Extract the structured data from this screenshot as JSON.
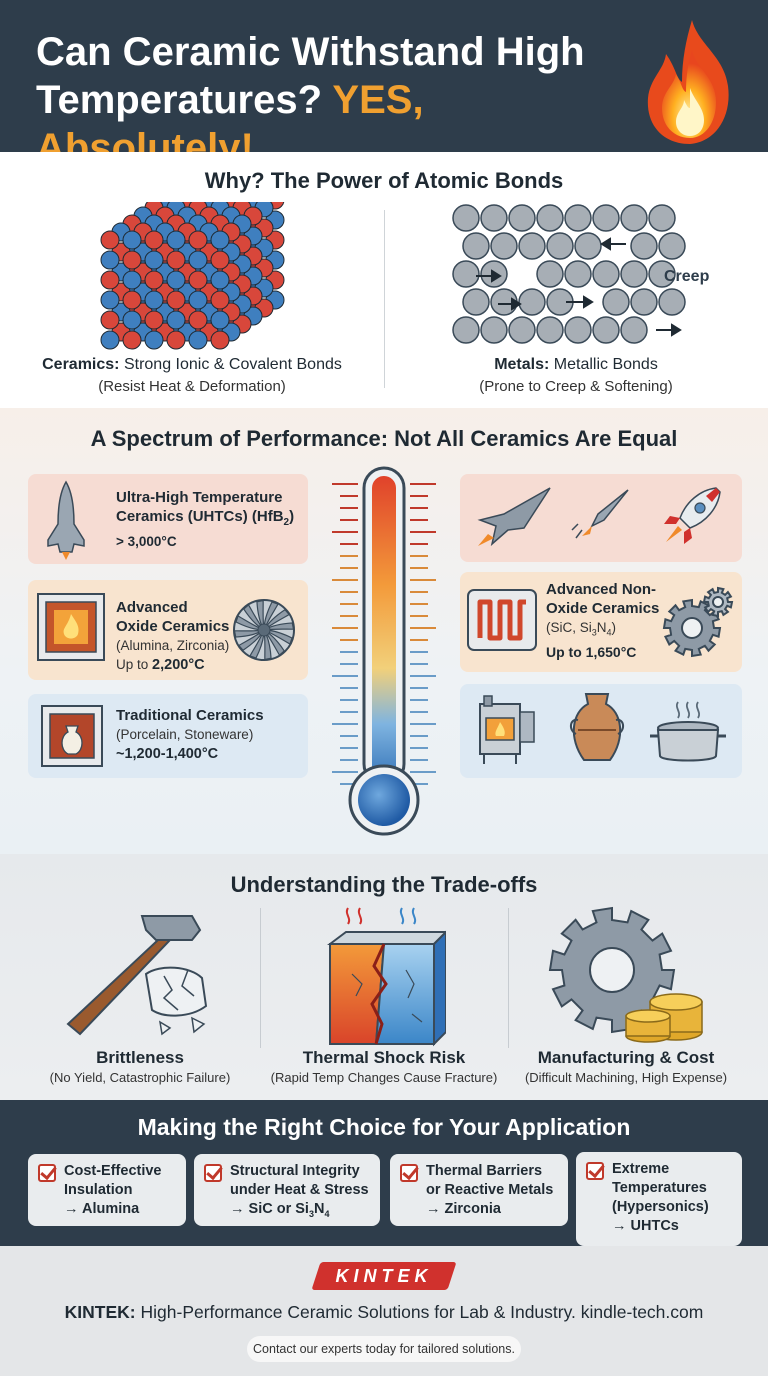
{
  "header": {
    "title_line1": "Can Ceramic Withstand High",
    "title_line2_a": "Temperatures?",
    "title_line2_b": "YES, Absolutely!",
    "icon": "flame-icon"
  },
  "bonds": {
    "title": "Why? The Power of Atomic Bonds",
    "ceramics": {
      "label": "Ceramics:",
      "desc": "Strong Ionic & Covalent Bonds",
      "sub": "(Resist Heat & Deformation)"
    },
    "metals": {
      "label": "Metals:",
      "desc": "Metallic Bonds",
      "sub": "(Prone to Creep & Softening)",
      "annotation": "Creep"
    }
  },
  "spectrum": {
    "title": "A Spectrum of Performance: Not All Ceramics Are Equal",
    "uhtc": {
      "line1": "Ultra-High Temperature",
      "line2": "Ceramics (UHTCs) (HfB",
      "sub_num": "2",
      "line2_end": ")",
      "temp": "> 3,000°C"
    },
    "oxide": {
      "line1": "Advanced",
      "line2": "Oxide Ceramics",
      "sub": "(Alumina, Zirconia)",
      "temp_prefix": "Up to ",
      "temp": "2,200°C"
    },
    "nonoxide": {
      "line1": "Advanced Non-",
      "line2": "Oxide Ceramics",
      "sub_a": "(SiC, Si",
      "sub_n1": "3",
      "sub_b": "N",
      "sub_n2": "4",
      "sub_c": ")",
      "temp": "Up to 1,650°C"
    },
    "traditional": {
      "line1": "Traditional Ceramics",
      "sub": "(Porcelain, Stoneware)",
      "temp": "~1,200-1,400°C"
    }
  },
  "tradeoffs": {
    "title": "Understanding the Trade-offs",
    "items": [
      {
        "h": "Brittleness",
        "s": "(No Yield, Catastrophic Failure)"
      },
      {
        "h": "Thermal Shock Risk",
        "s": "(Rapid Temp Changes Cause Fracture)"
      },
      {
        "h": "Manufacturing & Cost",
        "s": "(Difficult Machining, High Expense)"
      }
    ]
  },
  "choice": {
    "title": "Making the Right Choice for Your Application",
    "items": [
      {
        "l1": "Cost-Effective",
        "l2": "Insulation",
        "l3": "→ Alumina"
      },
      {
        "l1": "Structural Integrity",
        "l2": "under Heat & Stress",
        "l3a": "→ SiC or Si",
        "n1": "3",
        "l3b": "N",
        "n2": "4"
      },
      {
        "l1": "Thermal Barriers",
        "l2": "or Reactive Metals",
        "l3": "→ Zirconia"
      },
      {
        "l1": "Extreme",
        "l2": "Temperatures",
        "l3": "(Hypersonics)",
        "l4": "→ UHTCs"
      }
    ]
  },
  "footer": {
    "logo": "KINTEK",
    "brand": "KINTEK:",
    "tagline": "High-Performance Ceramic Solutions for Lab & Industry. kindle-tech.com",
    "contact": "Contact our experts today for tailored solutions."
  }
}
